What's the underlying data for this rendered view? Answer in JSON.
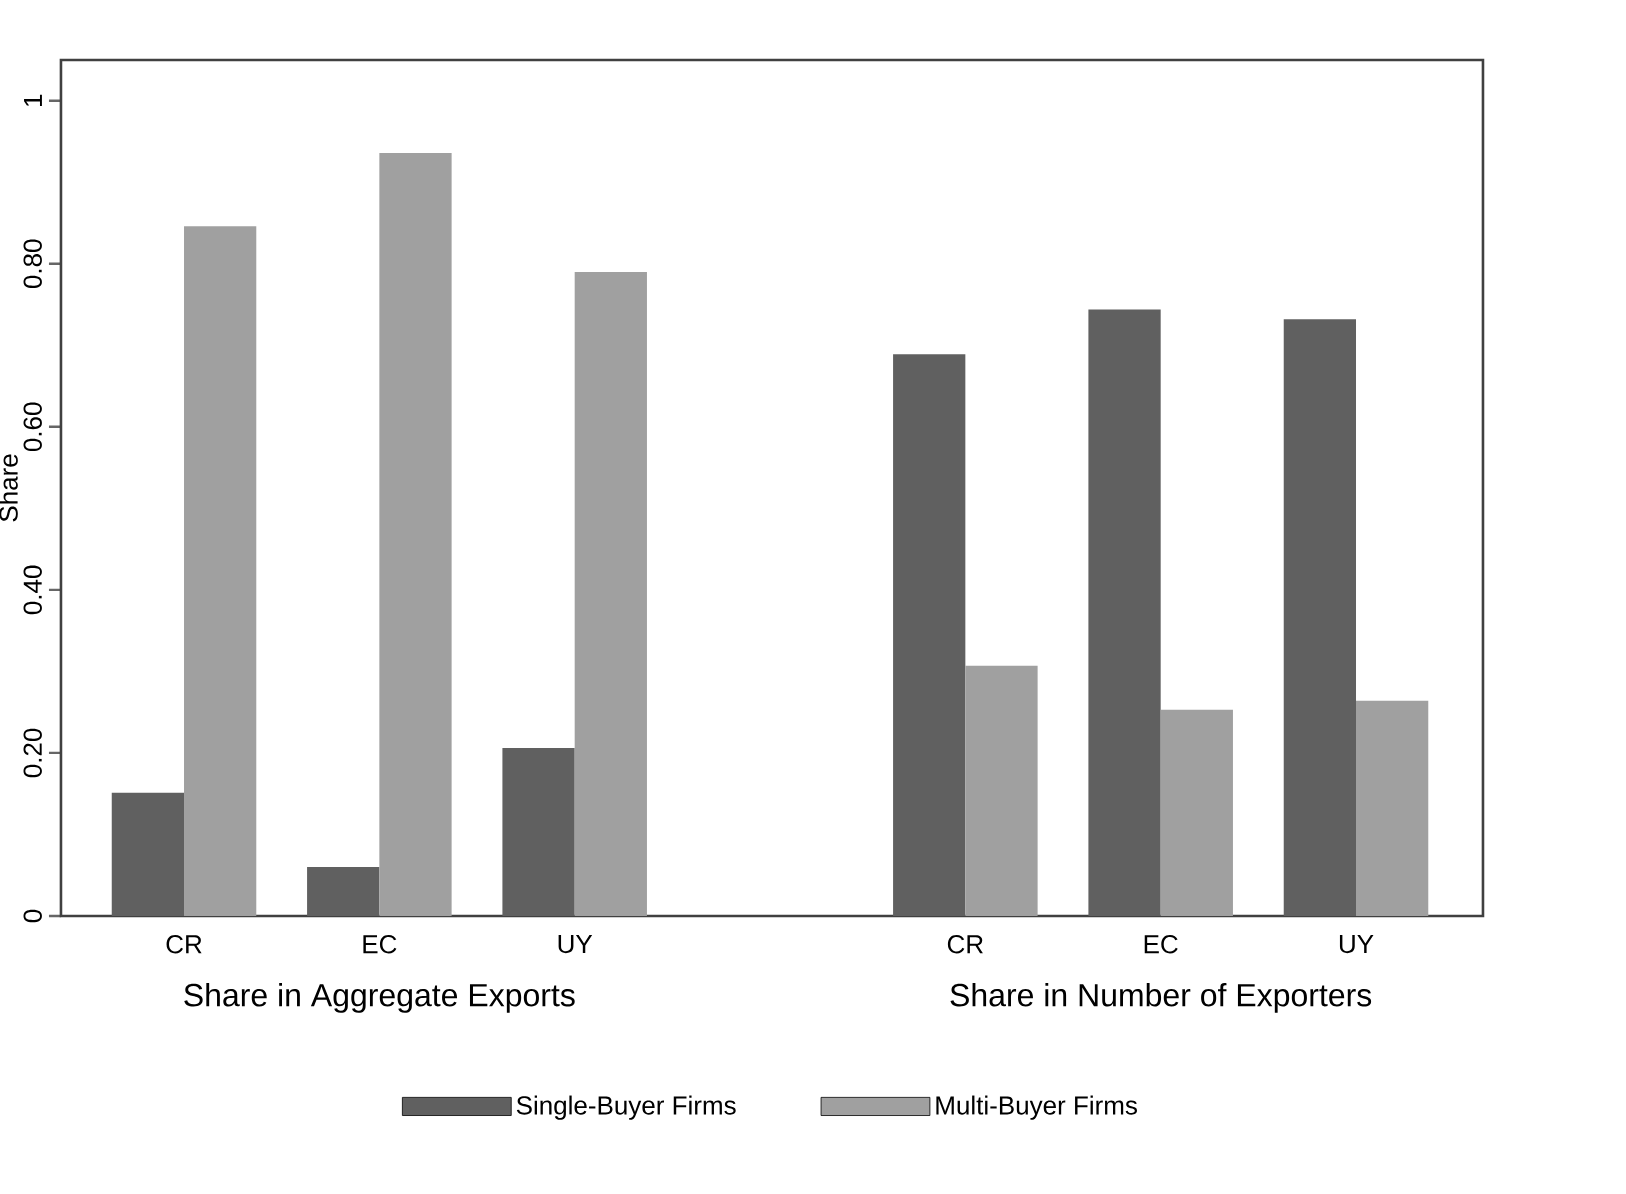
{
  "chart_data": {
    "type": "bar",
    "ylabel": "Share",
    "categories": [
      "CR",
      "EC",
      "UY",
      null,
      "CR",
      "EC",
      "UY"
    ],
    "annotations": [
      "Share in Aggregate Exports",
      "Share in Number of Exporters"
    ],
    "series": [
      {
        "name": "Single-Buyer Firms",
        "color": "#606060",
        "values": [
          0.151,
          0.06,
          0.206,
          null,
          0.689,
          0.744,
          0.732
        ]
      },
      {
        "name": "Multi-Buyer Firms",
        "color": "#a0a0a0",
        "values": [
          0.846,
          0.936,
          0.79,
          null,
          0.307,
          0.253,
          0.264
        ]
      }
    ],
    "ylim": [
      0,
      1.05
    ],
    "yticks": [
      0,
      {
        "value": 0.2,
        "label": "0.20"
      },
      {
        "value": 0.4,
        "label": "0.40"
      },
      {
        "value": 0.6,
        "label": "0.60"
      },
      {
        "value": 0.8,
        "label": "0.80"
      },
      1
    ],
    "legend": "bottom"
  }
}
